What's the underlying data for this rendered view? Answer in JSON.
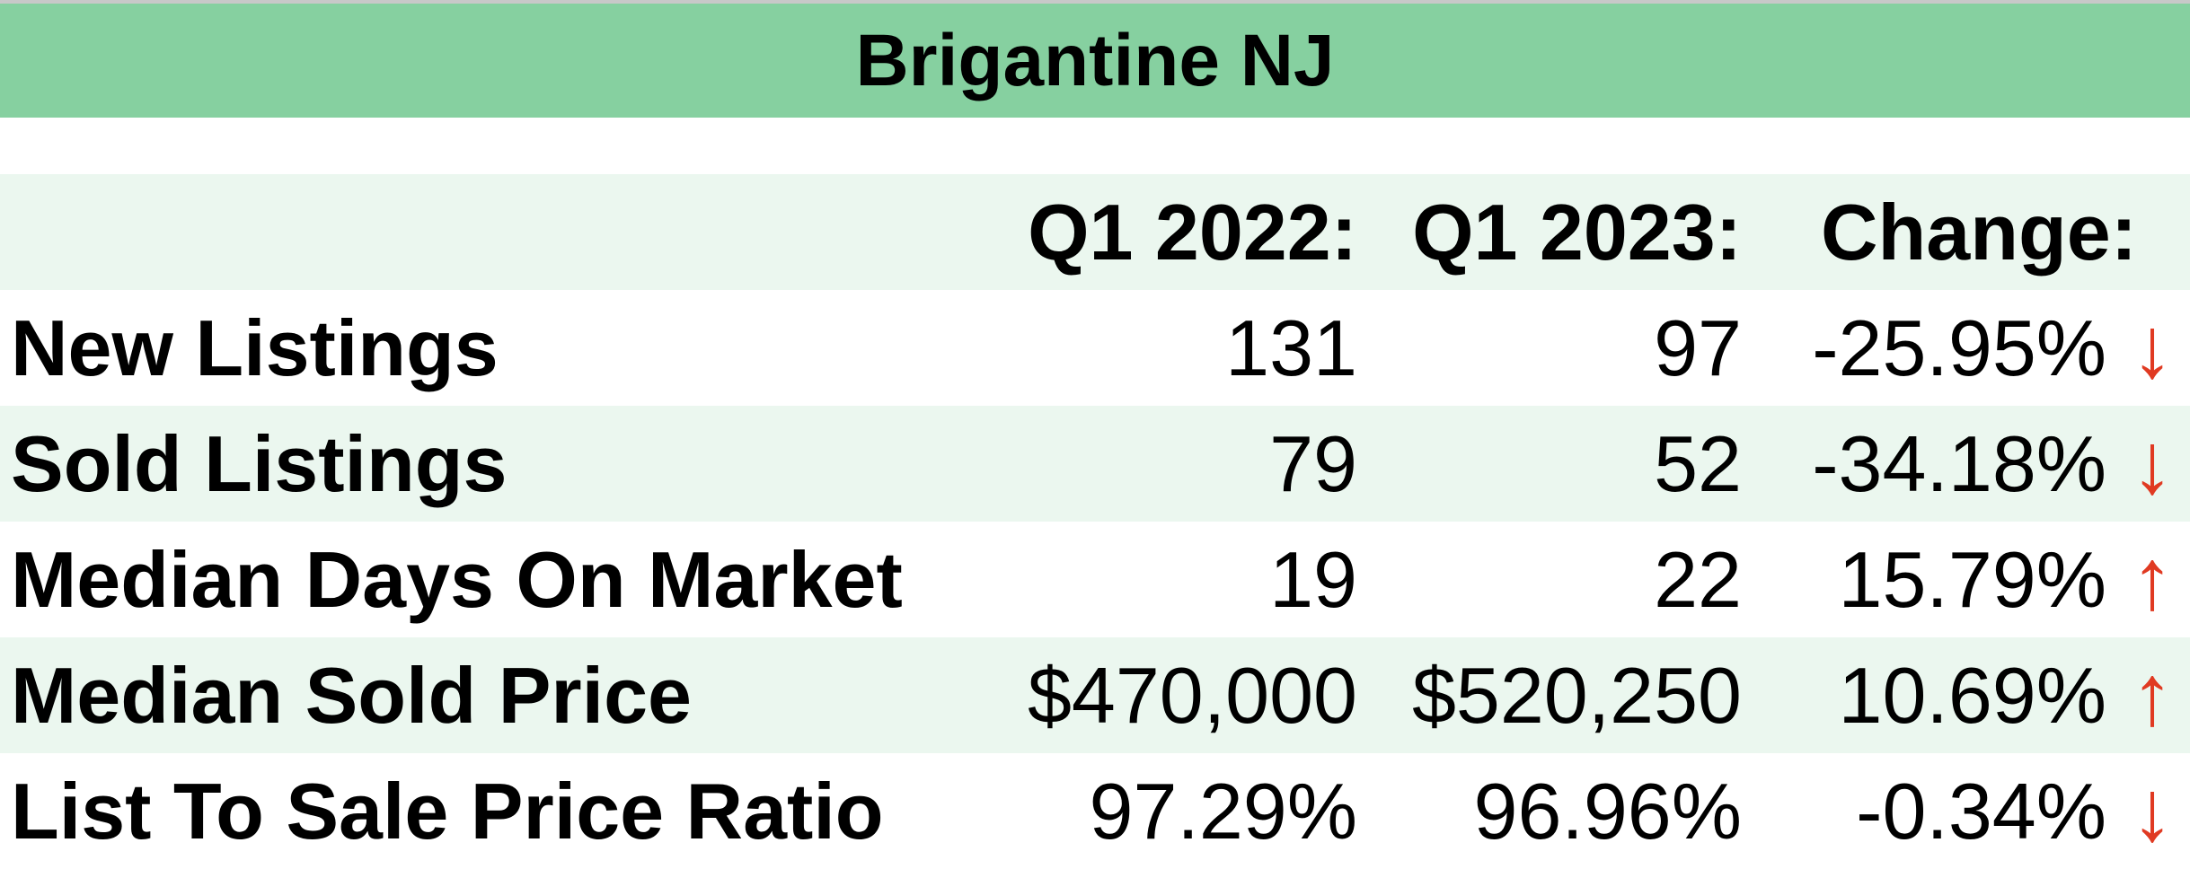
{
  "header": {
    "title": "Brigantine NJ"
  },
  "table": {
    "columns": [
      "Q1 2022:",
      "Q1 2023:",
      "Change:"
    ],
    "rows": [
      [
        "New Listings",
        "131",
        "97",
        "-25.95%",
        "↓"
      ],
      [
        "Sold Listings",
        "79",
        "52",
        "-34.18%",
        "↓"
      ],
      [
        "Median Days On Market",
        "19",
        "22",
        "15.79%",
        "↑"
      ],
      [
        "Median Sold Price",
        "$470,000",
        "$520,250",
        "10.69%",
        "↑"
      ],
      [
        "List To Sale Price Ratio",
        "97.29%",
        "96.96%",
        "-0.34%",
        "↓"
      ]
    ]
  }
}
